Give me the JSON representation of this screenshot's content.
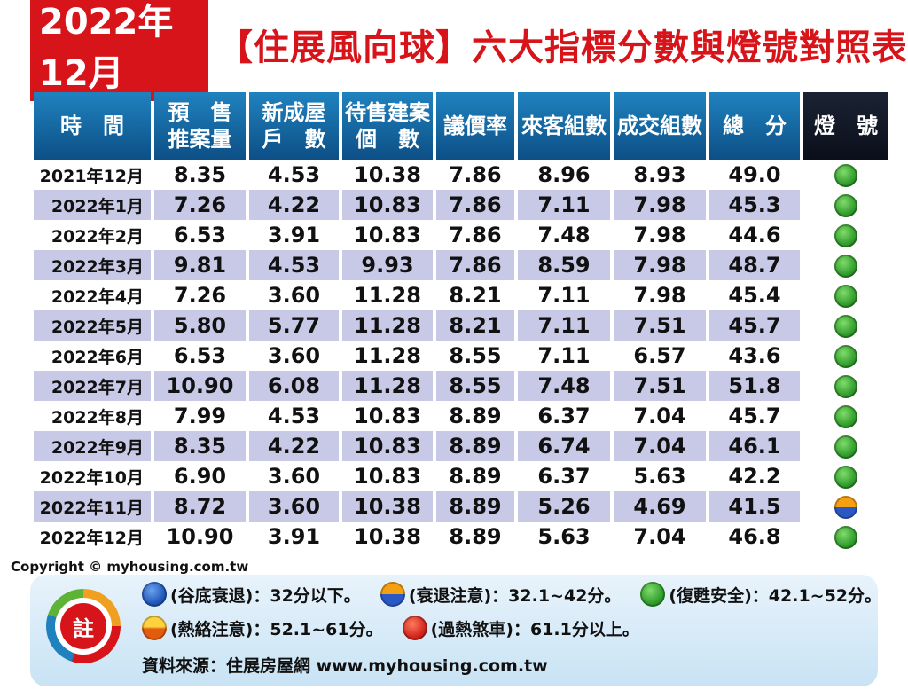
{
  "title": {
    "highlight": "2022年12月",
    "rest": "【住展風向球】六大指標分數與燈號對照表"
  },
  "headers": [
    "時　間",
    "預　售\n推案量",
    "新成屋\n戶　數",
    "待售建案\n個　數",
    "議價率",
    "來客組數",
    "成交組數",
    "總　分",
    "燈　號"
  ],
  "rows": [
    {
      "date": "2021年12月",
      "v": [
        "8.35",
        "4.53",
        "10.38",
        "7.86",
        "8.96",
        "8.93",
        "49.0"
      ],
      "lamp": "green"
    },
    {
      "date": "2022年1月",
      "v": [
        "7.26",
        "4.22",
        "10.83",
        "7.86",
        "7.11",
        "7.98",
        "45.3"
      ],
      "lamp": "green"
    },
    {
      "date": "2022年2月",
      "v": [
        "6.53",
        "3.91",
        "10.83",
        "7.86",
        "7.48",
        "7.98",
        "44.6"
      ],
      "lamp": "green"
    },
    {
      "date": "2022年3月",
      "v": [
        "9.81",
        "4.53",
        "9.93",
        "7.86",
        "8.59",
        "7.98",
        "48.7"
      ],
      "lamp": "green"
    },
    {
      "date": "2022年4月",
      "v": [
        "7.26",
        "3.60",
        "11.28",
        "8.21",
        "7.11",
        "7.98",
        "45.4"
      ],
      "lamp": "green"
    },
    {
      "date": "2022年5月",
      "v": [
        "5.80",
        "5.77",
        "11.28",
        "8.21",
        "7.11",
        "7.51",
        "45.7"
      ],
      "lamp": "green"
    },
    {
      "date": "2022年6月",
      "v": [
        "6.53",
        "3.60",
        "11.28",
        "8.55",
        "7.11",
        "6.57",
        "43.6"
      ],
      "lamp": "green"
    },
    {
      "date": "2022年7月",
      "v": [
        "10.90",
        "6.08",
        "11.28",
        "8.55",
        "7.48",
        "7.51",
        "51.8"
      ],
      "lamp": "green"
    },
    {
      "date": "2022年8月",
      "v": [
        "7.99",
        "4.53",
        "10.83",
        "8.89",
        "6.37",
        "7.04",
        "45.7"
      ],
      "lamp": "green"
    },
    {
      "date": "2022年9月",
      "v": [
        "8.35",
        "4.22",
        "10.83",
        "8.89",
        "6.74",
        "7.04",
        "46.1"
      ],
      "lamp": "green"
    },
    {
      "date": "2022年10月",
      "v": [
        "6.90",
        "3.60",
        "10.83",
        "8.89",
        "6.37",
        "5.63",
        "42.2"
      ],
      "lamp": "green"
    },
    {
      "date": "2022年11月",
      "v": [
        "8.72",
        "3.60",
        "10.38",
        "8.89",
        "5.26",
        "4.69",
        "41.5"
      ],
      "lamp": "orange-blue"
    },
    {
      "date": "2022年12月",
      "v": [
        "10.90",
        "3.91",
        "10.38",
        "8.89",
        "5.63",
        "7.04",
        "46.8"
      ],
      "lamp": "green"
    }
  ],
  "copyright": "Copyright © myhousing.com.tw",
  "note": {
    "label": "註",
    "legend_row1": [
      {
        "lamp": "blue",
        "text": "(谷底衰退)：32分以下。"
      },
      {
        "lamp": "orange-blue",
        "text": "(衰退注意)：32.1~42分。"
      },
      {
        "lamp": "green",
        "text": "(復甦安全)：42.1~52分。"
      }
    ],
    "legend_row2": [
      {
        "lamp": "orange",
        "text": "(熱絡注意)：52.1~61分。"
      },
      {
        "lamp": "red",
        "text": "(過熱煞車)：61.1分以上。"
      }
    ],
    "source": "資料來源：住展房屋網 www.myhousing.com.tw"
  },
  "colors": {
    "accent": "#d7141a",
    "header": "#0d4f86",
    "alt_row": "#c8c9e6"
  }
}
